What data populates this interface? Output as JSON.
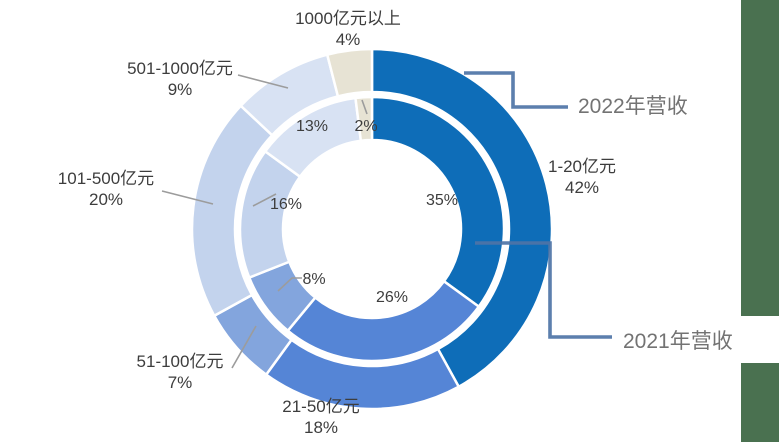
{
  "chart_data": {
    "type": "pie",
    "subtype": "double-ring-donut",
    "title": "",
    "categories": [
      "1-20亿元",
      "21-50亿元",
      "51-100亿元",
      "101-500亿元",
      "501-1000亿元",
      "1000亿元以上"
    ],
    "colors": [
      "#0E6DB8",
      "#5585D6",
      "#83A5DD",
      "#C3D3ED",
      "#D8E2F3",
      "#E7E3D4"
    ],
    "series": [
      {
        "name": "2022年营收",
        "ring": "outer",
        "values": [
          42,
          18,
          7,
          20,
          9,
          4
        ],
        "labels": [
          "42%",
          "18%",
          "7%",
          "20%",
          "9%",
          "4%"
        ]
      },
      {
        "name": "2021年营收",
        "ring": "inner",
        "values": [
          35,
          26,
          8,
          16,
          13,
          2
        ],
        "labels": [
          "35%",
          "26%",
          "8%",
          "16%",
          "13%",
          "2%"
        ]
      }
    ],
    "start_angle_deg": 0,
    "direction": "clockwise",
    "legend_position": "none",
    "grid": false
  },
  "category_labels": [
    {
      "text": "1-20亿元",
      "pct": "42%"
    },
    {
      "text": "21-50亿元",
      "pct": "18%"
    },
    {
      "text": "51-100亿元",
      "pct": "7%"
    },
    {
      "text": "101-500亿元",
      "pct": "20%"
    },
    {
      "text": "501-1000亿元",
      "pct": "9%"
    },
    {
      "text": "1000亿元以上",
      "pct": "4%"
    }
  ],
  "inner_value_labels": [
    "35%",
    "26%",
    "8%",
    "16%",
    "13%",
    "2%"
  ],
  "style": {
    "segment_border_color": "#FFFFFF",
    "connector_color": "#4E74A6",
    "callout_color": "#9C9C9C",
    "label_color": "#3D3D3D",
    "series_label_color": "#737373",
    "accent_bar_color": "#4A7150",
    "background": "#FFFFFF"
  }
}
